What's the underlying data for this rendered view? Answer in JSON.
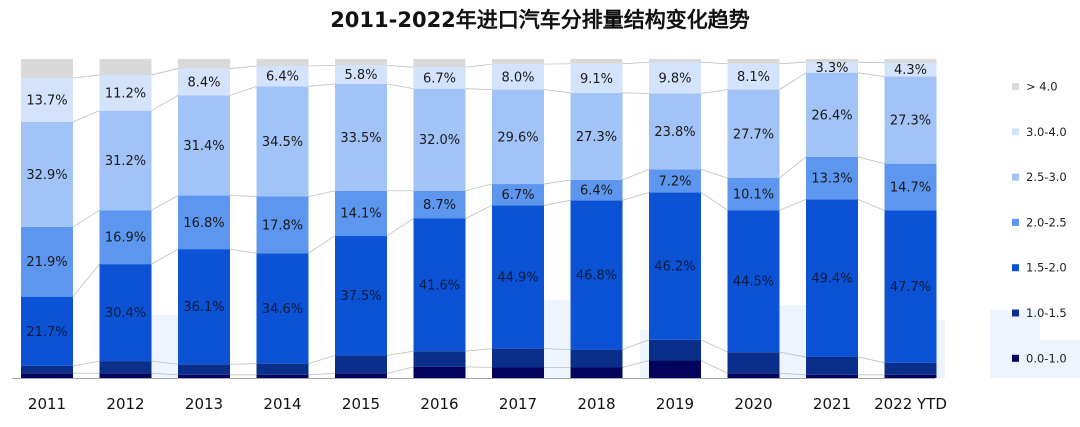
{
  "chart_data": {
    "type": "bar",
    "stacked": true,
    "percent": true,
    "title": "2011-2022年进口汽车分排量结构变化趋势",
    "categories": [
      "2011",
      "2012",
      "2013",
      "2014",
      "2015",
      "2016",
      "2017",
      "2018",
      "2019",
      "2020",
      "2021",
      "2022 YTD"
    ],
    "series": [
      {
        "name": "0.0-1.0",
        "color": "#03045e",
        "values": [
          1.5,
          1.5,
          1.0,
          1.0,
          1.5,
          3.5,
          3.3,
          3.3,
          5.5,
          1.5,
          1.0,
          1.0
        ]
      },
      {
        "name": "1.0-1.5",
        "color": "#0a2f8a",
        "values": [
          2.3,
          3.8,
          3.3,
          3.5,
          5.6,
          4.9,
          5.9,
          5.6,
          6.5,
          6.6,
          5.6,
          3.8
        ]
      },
      {
        "name": "1.5-2.0",
        "color": "#0b52d4",
        "values": [
          21.7,
          30.4,
          36.1,
          34.6,
          37.5,
          41.6,
          44.9,
          46.8,
          46.2,
          44.5,
          49.4,
          47.7
        ]
      },
      {
        "name": "2.0-2.5",
        "color": "#5c96ef",
        "values": [
          21.9,
          16.9,
          16.8,
          17.8,
          14.1,
          8.7,
          6.7,
          6.4,
          7.2,
          10.1,
          13.3,
          14.7
        ]
      },
      {
        "name": "2.5-3.0",
        "color": "#a2c3f7",
        "values": [
          32.9,
          31.2,
          31.4,
          34.5,
          33.5,
          32.0,
          29.6,
          27.3,
          23.8,
          27.7,
          26.4,
          27.3
        ]
      },
      {
        "name": "3.0-4.0",
        "color": "#d2e3fb",
        "values": [
          13.7,
          11.2,
          8.4,
          6.4,
          5.8,
          6.7,
          8.0,
          9.1,
          9.8,
          8.1,
          3.3,
          4.3
        ]
      },
      {
        "name": "> 4.0",
        "color": "#d9d9d9",
        "values": [
          6.0,
          5.0,
          3.0,
          2.2,
          2.0,
          2.6,
          1.6,
          1.5,
          1.0,
          1.5,
          1.0,
          1.2
        ]
      }
    ],
    "data_labels": {
      "1.5-2.0": [
        "21.7%",
        "30.4%",
        "36.1%",
        "34.6%",
        "37.5%",
        "41.6%",
        "44.9%",
        "46.8%",
        "46.2%",
        "44.5%",
        "49.4%",
        "47.7%"
      ],
      "2.0-2.5": [
        "21.9%",
        "16.9%",
        "16.8%",
        "17.8%",
        "14.1%",
        "8.7%",
        "6.7%",
        "6.4%",
        "7.2%",
        "10.1%",
        "13.3%",
        "14.7%"
      ],
      "2.5-3.0": [
        "32.9%",
        "31.2%",
        "31.4%",
        "34.5%",
        "33.5%",
        "32.0%",
        "29.6%",
        "27.3%",
        "23.8%",
        "27.7%",
        "26.4%",
        "27.3%"
      ],
      "3.0-4.0": [
        "13.7%",
        "11.2%",
        "8.4%",
        "6.4%",
        "5.8%",
        "6.7%",
        "8.0%",
        "9.1%",
        "9.8%",
        "8.1%",
        "3.3%",
        "4.3%"
      ]
    },
    "legend_order": [
      "> 4.0",
      "3.0-4.0",
      "2.5-3.0",
      "2.0-2.5",
      "1.5-2.0",
      "1.0-1.5",
      "0.0-1.0"
    ],
    "legend_position": "right",
    "ylim": [
      0,
      100
    ],
    "grid": false,
    "xlabel": "",
    "ylabel": ""
  }
}
